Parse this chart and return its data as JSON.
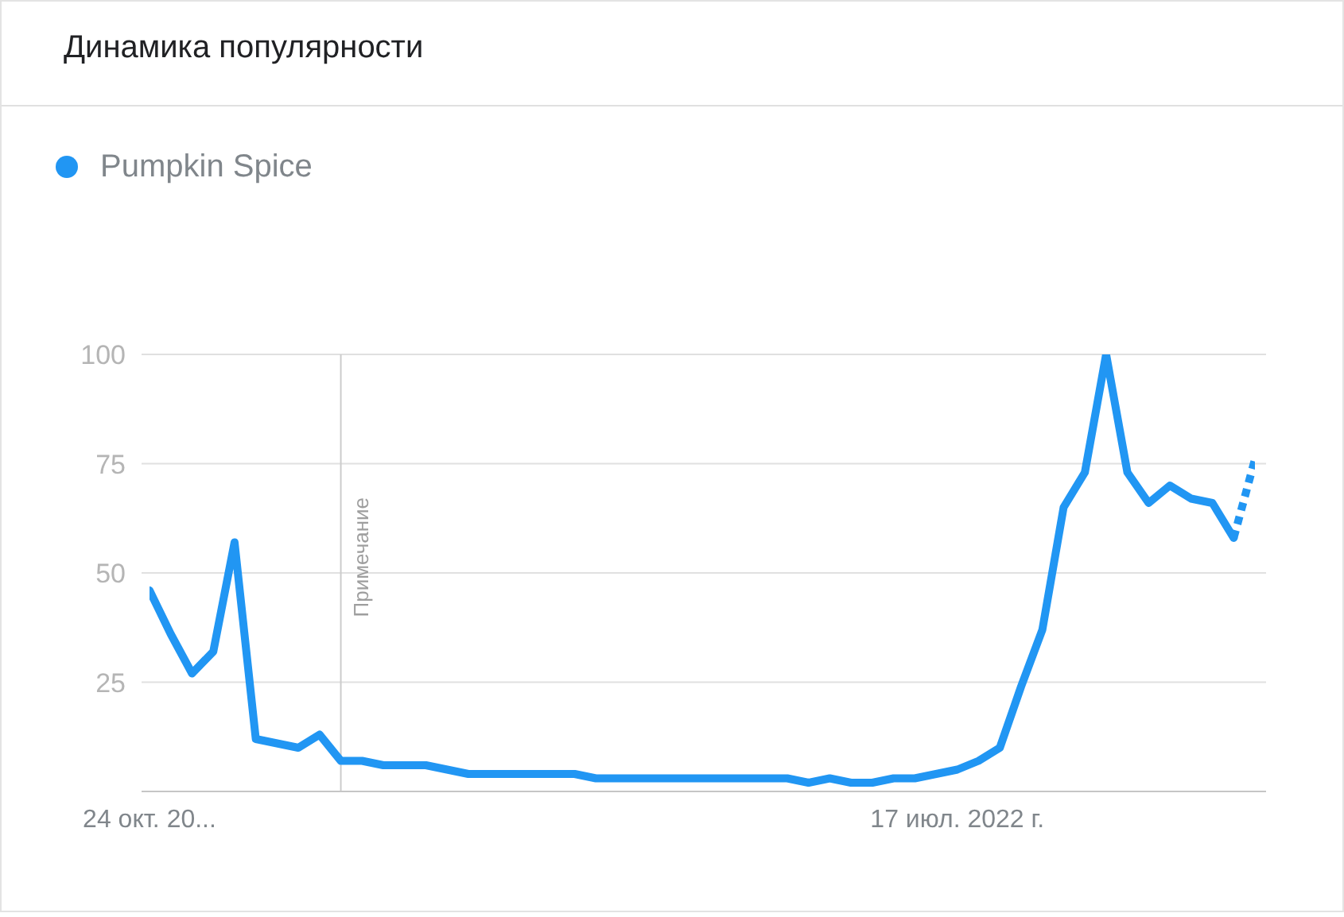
{
  "chart_data": {
    "type": "line",
    "title": "Динамика популярности",
    "x": [
      "2021-10-24",
      "2021-10-31",
      "2021-11-07",
      "2021-11-14",
      "2021-11-21",
      "2021-11-28",
      "2021-12-05",
      "2021-12-12",
      "2021-12-19",
      "2021-12-26",
      "2022-01-02",
      "2022-01-09",
      "2022-01-16",
      "2022-01-23",
      "2022-01-30",
      "2022-02-06",
      "2022-02-13",
      "2022-02-20",
      "2022-02-27",
      "2022-03-06",
      "2022-03-13",
      "2022-03-20",
      "2022-03-27",
      "2022-04-03",
      "2022-04-10",
      "2022-04-17",
      "2022-04-24",
      "2022-05-01",
      "2022-05-08",
      "2022-05-15",
      "2022-05-22",
      "2022-05-29",
      "2022-06-05",
      "2022-06-12",
      "2022-06-19",
      "2022-06-26",
      "2022-07-03",
      "2022-07-10",
      "2022-07-17",
      "2022-07-24",
      "2022-07-31",
      "2022-08-07",
      "2022-08-14",
      "2022-08-21",
      "2022-08-28",
      "2022-09-04",
      "2022-09-11",
      "2022-09-18",
      "2022-09-25",
      "2022-10-02",
      "2022-10-09",
      "2022-10-16",
      "2022-10-23"
    ],
    "xlim": [
      "2021-10-24",
      "2022-10-23"
    ],
    "xticks": [
      {
        "value": "2021-10-24",
        "label": "24 окт. 20..."
      },
      {
        "value": "2022-07-17",
        "label": "17 июл. 2022 г."
      }
    ],
    "ylim": [
      0,
      100
    ],
    "yticks": [
      25,
      50,
      75,
      100
    ],
    "grid": "y",
    "legend": "top left",
    "marker": "none",
    "line_style": "solid",
    "series": [
      {
        "name": "Pumpkin Spice",
        "color": "#2196f3",
        "values": [
          46,
          36,
          27,
          32,
          57,
          12,
          11,
          10,
          13,
          7,
          7,
          6,
          6,
          6,
          5,
          4,
          4,
          4,
          4,
          4,
          4,
          3,
          3,
          3,
          3,
          3,
          3,
          3,
          3,
          3,
          3,
          2,
          3,
          2,
          2,
          3,
          3,
          4,
          5,
          7,
          10,
          24,
          37,
          65,
          73,
          100,
          73,
          66,
          70,
          67,
          66,
          58,
          null
        ]
      },
      {
        "color": "#2196f3",
        "line_style": "dotted",
        "values": [
          null,
          null,
          null,
          null,
          null,
          null,
          null,
          null,
          null,
          null,
          null,
          null,
          null,
          null,
          null,
          null,
          null,
          null,
          null,
          null,
          null,
          null,
          null,
          null,
          null,
          null,
          null,
          null,
          null,
          null,
          null,
          null,
          null,
          null,
          null,
          null,
          null,
          null,
          null,
          null,
          null,
          null,
          null,
          null,
          null,
          null,
          null,
          null,
          null,
          null,
          null,
          58,
          76
        ]
      }
    ],
    "ref_lines": [
      {
        "axis": "x",
        "value": "2021-12-26",
        "label": "Примечание",
        "color": "#cccccc"
      }
    ]
  }
}
